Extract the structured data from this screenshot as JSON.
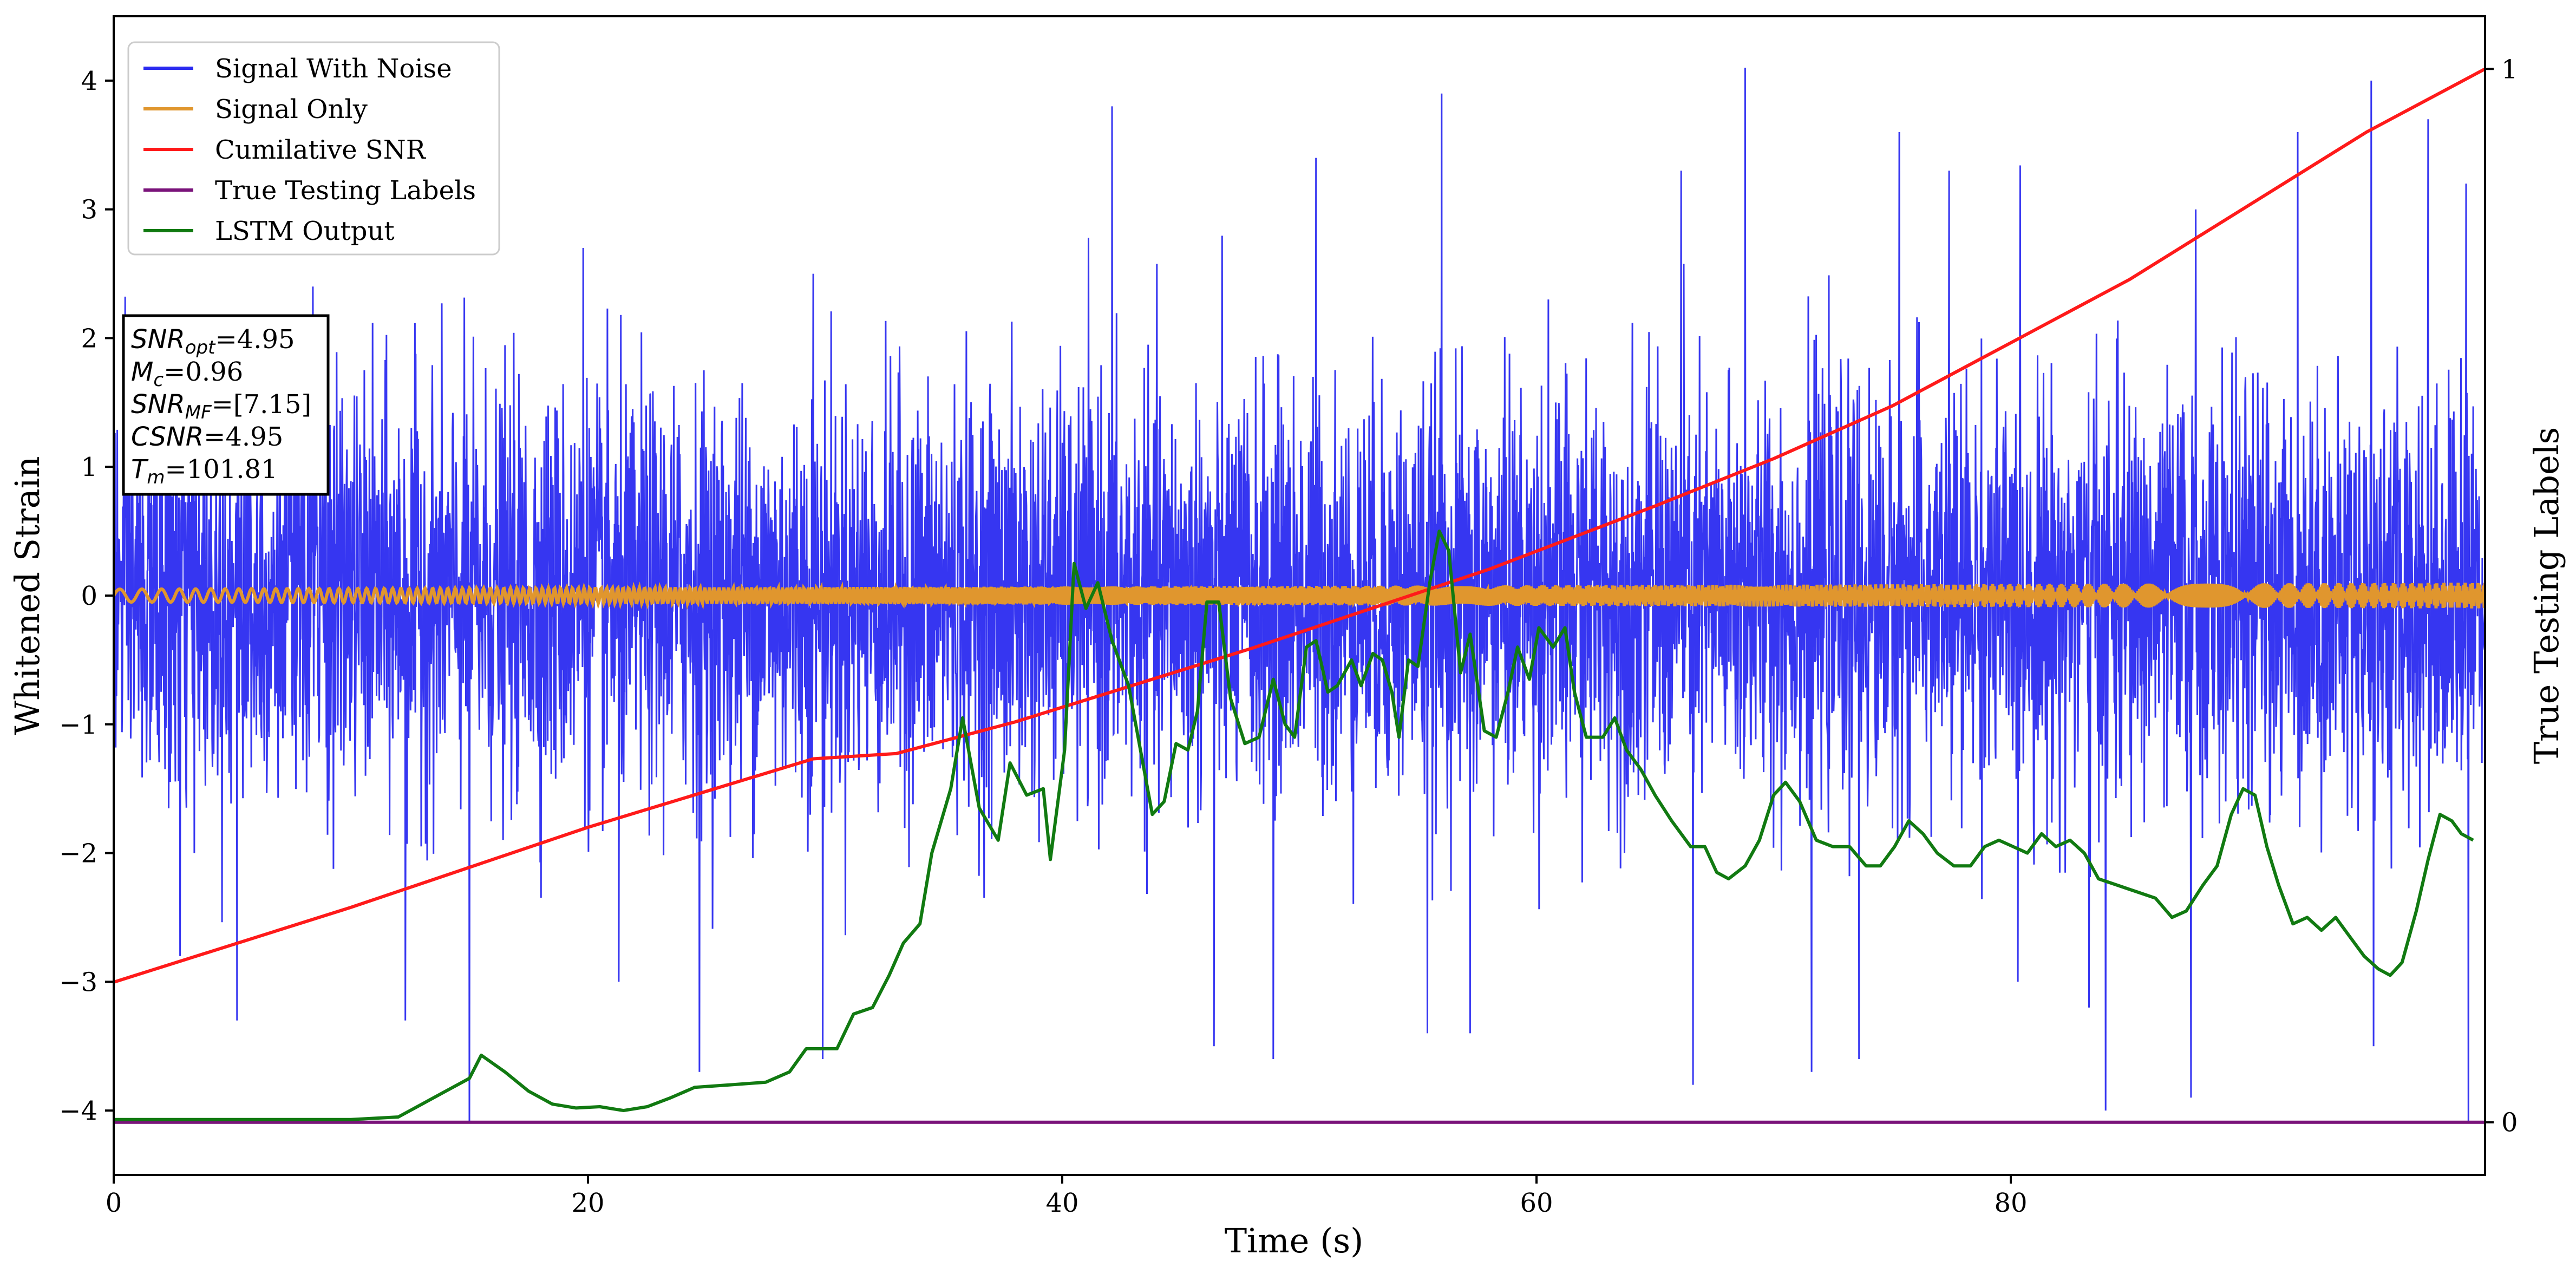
{
  "chart_data": {
    "type": "line",
    "xlabel": "Time (s)",
    "ylabel": "Whitened Strain",
    "y2label": "True Testing Labels",
    "xlim": [
      0,
      100
    ],
    "ylim": [
      -4.5,
      4.5
    ],
    "y2lim": [
      -0.05,
      1.05
    ],
    "xticks": [
      0,
      20,
      40,
      60,
      80
    ],
    "yticks": [
      -4,
      -3,
      -2,
      -1,
      0,
      1,
      2,
      3,
      4
    ],
    "y2ticks": [
      0,
      1
    ],
    "grid": false,
    "legend_position": "top-left",
    "series": [
      {
        "name": "Signal With Noise",
        "axis": "left",
        "color": "#2b2bf0",
        "description": "dense whitened noise, roughly uniform envelope, std ~0.8",
        "points": [
          [
            0,
            0.3
          ],
          [
            2.8,
            -2.8
          ],
          [
            5.2,
            -3.3
          ],
          [
            8.4,
            2.4
          ],
          [
            12.3,
            -3.3
          ],
          [
            15,
            -4.1
          ],
          [
            19.8,
            2.7
          ],
          [
            21.3,
            -3
          ],
          [
            24.7,
            -3.7
          ],
          [
            29.5,
            2.5
          ],
          [
            29.9,
            -3.6
          ],
          [
            42.1,
            3.8
          ],
          [
            46.4,
            -3.5
          ],
          [
            48.9,
            -3.6
          ],
          [
            50.7,
            3.4
          ],
          [
            55.4,
            -3.4
          ],
          [
            56,
            3.9
          ],
          [
            57.2,
            -3.4
          ],
          [
            60.5,
            2.3
          ],
          [
            66.1,
            3.3
          ],
          [
            66.6,
            -3.8
          ],
          [
            68.8,
            4.1
          ],
          [
            71.6,
            -3.7
          ],
          [
            73.6,
            -3.6
          ],
          [
            75.3,
            3.6
          ],
          [
            77.4,
            3.3
          ],
          [
            80.3,
            -3
          ],
          [
            83.3,
            -3.2
          ],
          [
            84,
            -4
          ],
          [
            87.6,
            -3.9
          ],
          [
            87.8,
            3
          ],
          [
            92.1,
            3.6
          ],
          [
            95.3,
            -3.5
          ],
          [
            95.2,
            4.0
          ],
          [
            97.6,
            3.7
          ],
          [
            99.2,
            3.2
          ],
          [
            99.3,
            -4.1
          ],
          [
            100,
            0.2
          ]
        ]
      },
      {
        "name": "Signal Only",
        "axis": "left",
        "color": "#e0962e",
        "amplitude_start": 0.05,
        "amplitude_end": 0.1
      },
      {
        "name": "Cumilative SNR",
        "axis": "right",
        "color": "#ff1a1a",
        "points": [
          [
            0,
            0.133
          ],
          [
            10,
            0.204
          ],
          [
            20,
            0.28
          ],
          [
            29.5,
            0.345
          ],
          [
            33,
            0.35
          ],
          [
            38,
            0.38
          ],
          [
            43,
            0.415
          ],
          [
            48,
            0.45
          ],
          [
            52,
            0.48
          ],
          [
            58,
            0.525
          ],
          [
            65,
            0.585
          ],
          [
            70,
            0.63
          ],
          [
            75,
            0.68
          ],
          [
            80,
            0.74
          ],
          [
            85,
            0.8
          ],
          [
            90,
            0.87
          ],
          [
            95,
            0.94
          ],
          [
            100,
            1.0
          ]
        ]
      },
      {
        "name": "True Testing Labels",
        "axis": "right",
        "color": "#7a137a",
        "points": [
          [
            0,
            0
          ],
          [
            100,
            0
          ]
        ]
      },
      {
        "name": "LSTM Output",
        "axis": "left",
        "color": "#117a11",
        "points": [
          [
            0,
            -4.07
          ],
          [
            5,
            -4.07
          ],
          [
            10,
            -4.07
          ],
          [
            12,
            -4.05
          ],
          [
            13,
            -3.95
          ],
          [
            14,
            -3.85
          ],
          [
            15,
            -3.75
          ],
          [
            15.5,
            -3.57
          ],
          [
            16.5,
            -3.7
          ],
          [
            17.5,
            -3.85
          ],
          [
            18.5,
            -3.95
          ],
          [
            19.5,
            -3.98
          ],
          [
            20.5,
            -3.97
          ],
          [
            21.5,
            -4.0
          ],
          [
            22.5,
            -3.97
          ],
          [
            23.5,
            -3.9
          ],
          [
            24.5,
            -3.82
          ],
          [
            26,
            -3.8
          ],
          [
            27.5,
            -3.78
          ],
          [
            28.5,
            -3.7
          ],
          [
            29.2,
            -3.52
          ],
          [
            30.5,
            -3.52
          ],
          [
            31.2,
            -3.25
          ],
          [
            32,
            -3.2
          ],
          [
            32.7,
            -2.95
          ],
          [
            33.3,
            -2.7
          ],
          [
            34,
            -2.55
          ],
          [
            34.5,
            -2.0
          ],
          [
            35.3,
            -1.5
          ],
          [
            35.8,
            -0.95
          ],
          [
            36.5,
            -1.65
          ],
          [
            37.3,
            -1.9
          ],
          [
            37.8,
            -1.3
          ],
          [
            38.5,
            -1.55
          ],
          [
            39.2,
            -1.5
          ],
          [
            39.5,
            -2.05
          ],
          [
            40.1,
            -1.2
          ],
          [
            40.5,
            0.25
          ],
          [
            41.0,
            -0.1
          ],
          [
            41.5,
            0.1
          ],
          [
            42.1,
            -0.35
          ],
          [
            42.8,
            -0.7
          ],
          [
            43.3,
            -1.2
          ],
          [
            43.8,
            -1.7
          ],
          [
            44.3,
            -1.6
          ],
          [
            44.8,
            -1.15
          ],
          [
            45.3,
            -1.2
          ],
          [
            45.7,
            -0.9
          ],
          [
            46.1,
            -0.05
          ],
          [
            46.6,
            -0.05
          ],
          [
            47.1,
            -0.8
          ],
          [
            47.7,
            -1.15
          ],
          [
            48.3,
            -1.1
          ],
          [
            48.9,
            -0.65
          ],
          [
            49.4,
            -1.0
          ],
          [
            49.8,
            -1.1
          ],
          [
            50.3,
            -0.4
          ],
          [
            50.7,
            -0.35
          ],
          [
            51.2,
            -0.75
          ],
          [
            51.6,
            -0.7
          ],
          [
            52.2,
            -0.5
          ],
          [
            52.6,
            -0.7
          ],
          [
            53.1,
            -0.45
          ],
          [
            53.5,
            -0.5
          ],
          [
            53.9,
            -0.75
          ],
          [
            54.2,
            -1.1
          ],
          [
            54.6,
            -0.5
          ],
          [
            55.0,
            -0.55
          ],
          [
            55.5,
            0.1
          ],
          [
            55.9,
            0.5
          ],
          [
            56.3,
            0.35
          ],
          [
            56.8,
            -0.6
          ],
          [
            57.2,
            -0.3
          ],
          [
            57.8,
            -1.05
          ],
          [
            58.3,
            -1.1
          ],
          [
            58.8,
            -0.75
          ],
          [
            59.2,
            -0.4
          ],
          [
            59.7,
            -0.65
          ],
          [
            60.1,
            -0.25
          ],
          [
            60.7,
            -0.4
          ],
          [
            61.2,
            -0.25
          ],
          [
            61.6,
            -0.75
          ],
          [
            62.1,
            -1.1
          ],
          [
            62.8,
            -1.1
          ],
          [
            63.3,
            -0.95
          ],
          [
            63.8,
            -1.2
          ],
          [
            64.4,
            -1.35
          ],
          [
            65.0,
            -1.55
          ],
          [
            65.7,
            -1.75
          ],
          [
            66.5,
            -1.95
          ],
          [
            67.1,
            -1.95
          ],
          [
            67.6,
            -2.15
          ],
          [
            68.1,
            -2.2
          ],
          [
            68.8,
            -2.1
          ],
          [
            69.4,
            -1.9
          ],
          [
            70.0,
            -1.55
          ],
          [
            70.5,
            -1.45
          ],
          [
            71.1,
            -1.6
          ],
          [
            71.8,
            -1.9
          ],
          [
            72.5,
            -1.95
          ],
          [
            73.2,
            -1.95
          ],
          [
            73.9,
            -2.1
          ],
          [
            74.5,
            -2.1
          ],
          [
            75.1,
            -1.95
          ],
          [
            75.7,
            -1.75
          ],
          [
            76.3,
            -1.85
          ],
          [
            76.9,
            -2.0
          ],
          [
            77.6,
            -2.1
          ],
          [
            78.3,
            -2.1
          ],
          [
            78.9,
            -1.95
          ],
          [
            79.5,
            -1.9
          ],
          [
            80.1,
            -1.95
          ],
          [
            80.7,
            -2.0
          ],
          [
            81.3,
            -1.85
          ],
          [
            81.9,
            -1.95
          ],
          [
            82.5,
            -1.9
          ],
          [
            83.1,
            -2.0
          ],
          [
            83.7,
            -2.2
          ],
          [
            84.5,
            -2.25
          ],
          [
            85.3,
            -2.3
          ],
          [
            86.1,
            -2.35
          ],
          [
            86.8,
            -2.5
          ],
          [
            87.4,
            -2.45
          ],
          [
            88.1,
            -2.25
          ],
          [
            88.7,
            -2.1
          ],
          [
            89.3,
            -1.7
          ],
          [
            89.8,
            -1.5
          ],
          [
            90.3,
            -1.55
          ],
          [
            90.8,
            -1.95
          ],
          [
            91.3,
            -2.25
          ],
          [
            91.9,
            -2.55
          ],
          [
            92.5,
            -2.5
          ],
          [
            93.1,
            -2.6
          ],
          [
            93.7,
            -2.5
          ],
          [
            94.3,
            -2.65
          ],
          [
            94.9,
            -2.8
          ],
          [
            95.5,
            -2.9
          ],
          [
            96.0,
            -2.95
          ],
          [
            96.5,
            -2.85
          ],
          [
            97.1,
            -2.45
          ],
          [
            97.6,
            -2.05
          ],
          [
            98.1,
            -1.7
          ],
          [
            98.6,
            -1.75
          ],
          [
            99.0,
            -1.85
          ],
          [
            99.5,
            -1.9
          ]
        ]
      }
    ],
    "annotation_lines": [
      {
        "sym": "SNR",
        "sub": "opt",
        "val": "=4.95"
      },
      {
        "sym": "M",
        "sub": "c",
        "val": "=0.96"
      },
      {
        "sym": "SNR",
        "sub": "MF",
        "val": "=[7.15]"
      },
      {
        "sym": "CSNR",
        "sub": "",
        "val": "=4.95"
      },
      {
        "sym": "T",
        "sub": "m",
        "val": "=101.81"
      }
    ]
  }
}
